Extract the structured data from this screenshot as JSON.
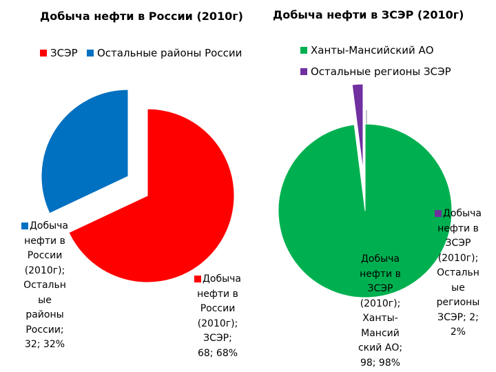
{
  "chart_data": [
    {
      "type": "pie",
      "title": "Добыча нефти в России (2010г)",
      "categories": [
        "ЗСЭР",
        "Остальные районы России"
      ],
      "values": [
        68,
        32
      ],
      "colors": [
        "#ff0000",
        "#0070c0"
      ],
      "legend_position": "top",
      "data_labels": [
        [
          "Добыча",
          "нефти в",
          "России",
          "(2010г);",
          "ЗСЭР;",
          "68; 68%"
        ],
        [
          "Добыча",
          "нефти в",
          "России",
          "(2010г);",
          "Остальн",
          "ые",
          "районы",
          "России;",
          "32; 32%"
        ]
      ]
    },
    {
      "type": "pie",
      "title": "Добыча нефти в ЗСЭР (2010г)",
      "categories": [
        "Ханты-Мансийский АО",
        "Остальные регионы ЗСЭР"
      ],
      "values": [
        98,
        2
      ],
      "colors": [
        "#00b050",
        "#7030a0"
      ],
      "legend_position": "top-right",
      "data_labels": [
        [
          "Добыча",
          "нефти в",
          "ЗСЭР",
          "(2010г);",
          "Ханты-",
          "Мансий",
          "ский АО;",
          "98; 98%"
        ],
        [
          "Добыча",
          "нефти в",
          "ЗСЭР",
          "(2010г);",
          "Остальн",
          "ые",
          "регионы",
          "ЗСЭР; 2;",
          "2%"
        ]
      ]
    }
  ]
}
